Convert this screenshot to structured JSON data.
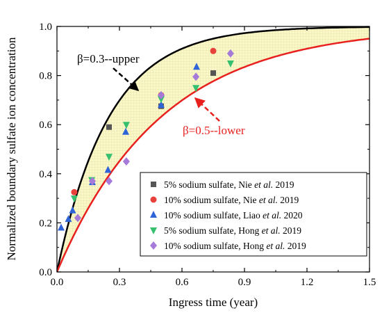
{
  "chart_data": {
    "type": "scatter",
    "xlabel": "Ingress time  (year)",
    "ylabel": "Normalized boundary sulfate ion concentration",
    "xlim": [
      0,
      1.5
    ],
    "ylim": [
      0,
      1.0
    ],
    "xticks": [
      "0.0",
      "0.3",
      "0.6",
      "0.9",
      "1.2",
      "1.5"
    ],
    "yticks": [
      "0.0",
      "0.2",
      "0.4",
      "0.6",
      "0.8",
      "1.0"
    ],
    "legend_position": "bottom-right",
    "curves": [
      {
        "label": "β=0.3--upper",
        "beta": 0.3,
        "rate": 4.0,
        "color": "#000000"
      },
      {
        "label": "β=0.5--lower",
        "beta": 0.5,
        "rate": 2.0,
        "color": "#e8201e"
      }
    ],
    "band_fill": "#fbf8c8",
    "series": [
      {
        "name_parts": [
          "5% sodium sulfate, Nie ",
          "et al.",
          " 2019"
        ],
        "marker": "square",
        "color": "#555555",
        "x": [
          0.25,
          0.5,
          0.75
        ],
        "y": [
          0.59,
          0.675,
          0.81
        ]
      },
      {
        "name_parts": [
          "10% sodium sulfate, Nie ",
          "et al.",
          " 2019"
        ],
        "marker": "circle",
        "color": "#e8403a",
        "x": [
          0.083,
          0.5,
          0.75
        ],
        "y": [
          0.325,
          0.72,
          0.9
        ]
      },
      {
        "name_parts": [
          "10% sodium sulfate, Liao ",
          "et al.",
          " 2020"
        ],
        "marker": "triangle-up",
        "color": "#2f64d8",
        "x": [
          0.02,
          0.055,
          0.075,
          0.17,
          0.245,
          0.33,
          0.5,
          0.67
        ],
        "y": [
          0.18,
          0.215,
          0.25,
          0.365,
          0.415,
          0.57,
          0.68,
          0.835
        ]
      },
      {
        "name_parts": [
          "5% sodium sulfate, Hong ",
          "et al.",
          " 2019"
        ],
        "marker": "triangle-down",
        "color": "#34c06e",
        "x": [
          0.083,
          0.167,
          0.25,
          0.333,
          0.5,
          0.667,
          0.833
        ],
        "y": [
          0.3,
          0.375,
          0.47,
          0.6,
          0.705,
          0.75,
          0.85
        ]
      },
      {
        "name_parts": [
          "10% sodium sulfate, Hong ",
          "et al.",
          " 2019"
        ],
        "marker": "diamond",
        "color": "#a57ad8",
        "x": [
          0.1,
          0.17,
          0.25,
          0.333,
          0.5,
          0.667,
          0.833
        ],
        "y": [
          0.22,
          0.37,
          0.37,
          0.45,
          0.72,
          0.795,
          0.89
        ]
      }
    ]
  }
}
